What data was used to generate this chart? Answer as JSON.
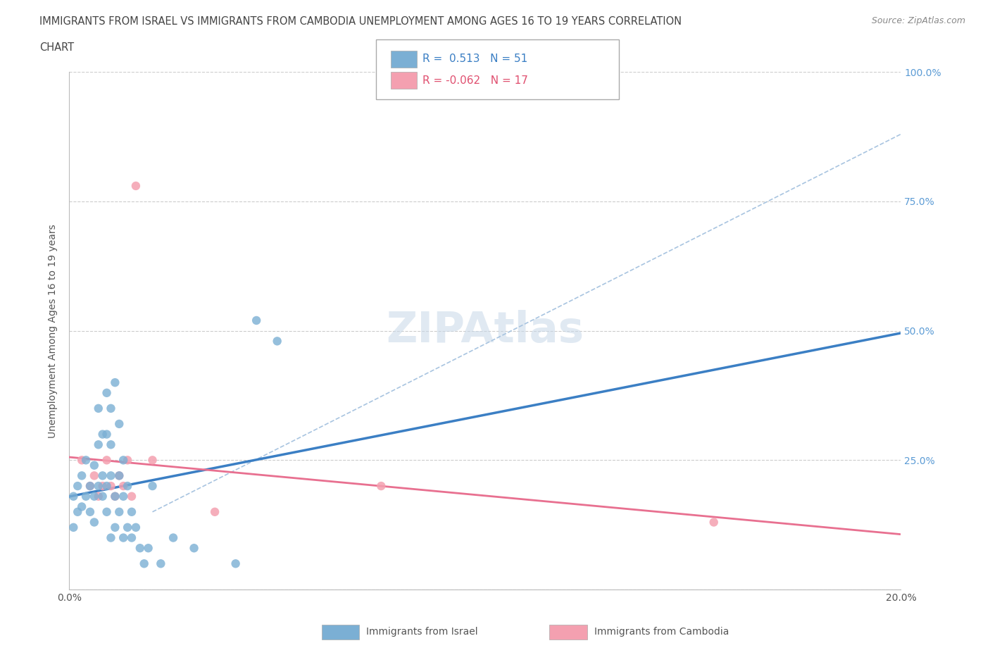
{
  "title_line1": "IMMIGRANTS FROM ISRAEL VS IMMIGRANTS FROM CAMBODIA UNEMPLOYMENT AMONG AGES 16 TO 19 YEARS CORRELATION",
  "title_line2": "CHART",
  "source_text": "Source: ZipAtlas.com",
  "ylabel": "Unemployment Among Ages 16 to 19 years",
  "xmin": 0.0,
  "xmax": 0.2,
  "ymin": 0.0,
  "ymax": 1.0,
  "yticks": [
    0.0,
    0.25,
    0.5,
    0.75,
    1.0
  ],
  "ytick_labels_right": [
    "",
    "25.0%",
    "50.0%",
    "75.0%",
    "100.0%"
  ],
  "xticks": [
    0.0,
    0.025,
    0.05,
    0.075,
    0.1,
    0.125,
    0.15,
    0.175,
    0.2
  ],
  "xtick_labels": [
    "0.0%",
    "",
    "",
    "",
    "",
    "",
    "",
    "",
    "20.0%"
  ],
  "israel_color": "#7BAFD4",
  "cambodia_color": "#F4A0B0",
  "israel_R": 0.513,
  "israel_N": 51,
  "cambodia_R": -0.062,
  "cambodia_N": 17,
  "israel_trend_color": "#3B7FC4",
  "cambodia_trend_color": "#E87090",
  "diagonal_color": "#A8C4E0",
  "watermark": "ZIPAtlas",
  "israel_scatter_x": [
    0.001,
    0.001,
    0.002,
    0.002,
    0.003,
    0.003,
    0.004,
    0.004,
    0.005,
    0.005,
    0.006,
    0.006,
    0.006,
    0.007,
    0.007,
    0.007,
    0.008,
    0.008,
    0.008,
    0.009,
    0.009,
    0.009,
    0.009,
    0.01,
    0.01,
    0.01,
    0.01,
    0.011,
    0.011,
    0.011,
    0.012,
    0.012,
    0.012,
    0.013,
    0.013,
    0.013,
    0.014,
    0.014,
    0.015,
    0.015,
    0.016,
    0.017,
    0.018,
    0.019,
    0.02,
    0.022,
    0.025,
    0.03,
    0.04,
    0.045,
    0.05
  ],
  "israel_scatter_y": [
    0.18,
    0.12,
    0.2,
    0.15,
    0.16,
    0.22,
    0.18,
    0.25,
    0.15,
    0.2,
    0.13,
    0.18,
    0.24,
    0.2,
    0.28,
    0.35,
    0.22,
    0.3,
    0.18,
    0.15,
    0.2,
    0.3,
    0.38,
    0.1,
    0.22,
    0.28,
    0.35,
    0.12,
    0.18,
    0.4,
    0.15,
    0.22,
    0.32,
    0.1,
    0.18,
    0.25,
    0.12,
    0.2,
    0.1,
    0.15,
    0.12,
    0.08,
    0.05,
    0.08,
    0.2,
    0.05,
    0.1,
    0.08,
    0.05,
    0.52,
    0.48
  ],
  "cambodia_scatter_x": [
    0.003,
    0.005,
    0.006,
    0.007,
    0.008,
    0.009,
    0.01,
    0.011,
    0.012,
    0.013,
    0.014,
    0.015,
    0.016,
    0.02,
    0.035,
    0.075,
    0.155
  ],
  "cambodia_scatter_y": [
    0.25,
    0.2,
    0.22,
    0.18,
    0.2,
    0.25,
    0.2,
    0.18,
    0.22,
    0.2,
    0.25,
    0.18,
    0.78,
    0.25,
    0.15,
    0.2,
    0.13
  ]
}
